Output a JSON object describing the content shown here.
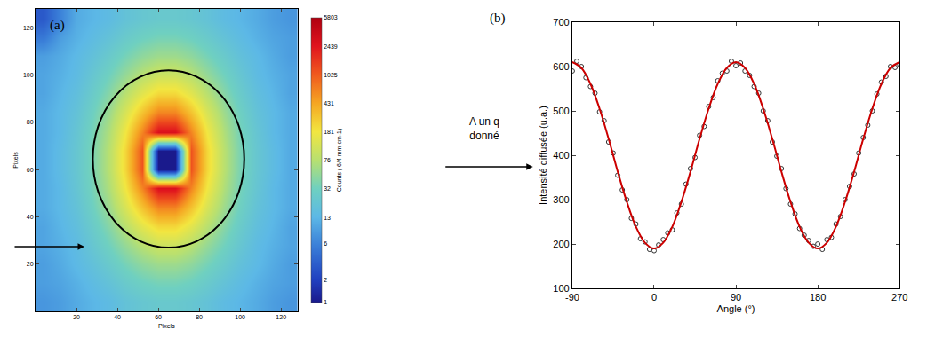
{
  "chart_data": [
    {
      "type": "heatmap",
      "panel": "(a)",
      "xlabel": "Pixels",
      "ylabel": "Pixels",
      "xlim": [
        0,
        128
      ],
      "ylim": [
        0,
        128
      ],
      "xticks": [
        20,
        40,
        60,
        80,
        100,
        120
      ],
      "yticks": [
        20,
        40,
        60,
        80,
        100,
        120
      ],
      "x": [
        4,
        12,
        20,
        28,
        36,
        44,
        52,
        60,
        68,
        76,
        84,
        92,
        100,
        108,
        116,
        124
      ],
      "y": [
        4,
        12,
        20,
        28,
        36,
        44,
        52,
        60,
        68,
        76,
        84,
        92,
        100,
        108,
        116,
        124
      ],
      "z": [
        [
          8,
          9,
          11,
          13,
          15,
          19,
          22,
          24,
          24,
          22,
          19,
          15,
          13,
          11,
          9,
          8
        ],
        [
          9,
          10,
          12,
          15,
          19,
          25,
          31,
          35,
          35,
          31,
          25,
          19,
          15,
          12,
          10,
          9
        ],
        [
          9,
          11,
          14,
          18,
          25,
          35,
          47,
          56,
          56,
          47,
          35,
          25,
          18,
          14,
          11,
          9
        ],
        [
          10,
          12,
          15,
          22,
          33,
          51,
          78,
          103,
          103,
          78,
          51,
          33,
          22,
          15,
          12,
          10
        ],
        [
          10,
          13,
          17,
          26,
          43,
          78,
          144,
          224,
          224,
          144,
          78,
          43,
          26,
          17,
          13,
          10
        ],
        [
          11,
          14,
          19,
          31,
          56,
          121,
          295,
          633,
          633,
          295,
          121,
          56,
          31,
          19,
          14,
          11
        ],
        [
          11,
          14,
          21,
          35,
          69,
          177,
          629,
          2761,
          2761,
          629,
          177,
          69,
          35,
          21,
          14,
          11
        ],
        [
          11,
          15,
          22,
          37,
          78,
          224,
          1121,
          1,
          1,
          1121,
          224,
          78,
          37,
          22,
          15,
          11
        ],
        [
          11,
          15,
          22,
          37,
          78,
          224,
          1121,
          1,
          1,
          1121,
          224,
          78,
          37,
          22,
          15,
          11
        ],
        [
          11,
          14,
          21,
          35,
          69,
          177,
          629,
          2761,
          2761,
          629,
          177,
          69,
          35,
          21,
          14,
          11
        ],
        [
          11,
          14,
          19,
          31,
          56,
          121,
          295,
          633,
          633,
          295,
          121,
          56,
          31,
          19,
          14,
          11
        ],
        [
          10,
          13,
          17,
          26,
          43,
          78,
          144,
          224,
          224,
          144,
          78,
          43,
          26,
          17,
          13,
          10
        ],
        [
          10,
          12,
          15,
          22,
          33,
          51,
          78,
          103,
          103,
          78,
          51,
          33,
          22,
          15,
          12,
          10
        ],
        [
          9,
          11,
          14,
          18,
          25,
          35,
          47,
          56,
          56,
          47,
          35,
          25,
          18,
          14,
          11,
          9
        ],
        [
          5,
          9,
          12,
          15,
          19,
          25,
          31,
          35,
          35,
          31,
          25,
          19,
          15,
          12,
          10,
          9
        ],
        [
          3,
          6,
          11,
          13,
          15,
          19,
          22,
          24,
          24,
          22,
          19,
          15,
          13,
          11,
          9,
          8
        ]
      ],
      "colorbar": {
        "title": "Counts ( 6/4 mm cm-1)",
        "range": [
          1,
          5803
        ],
        "ticks": [
          1,
          2,
          6,
          13,
          32,
          76,
          181,
          431,
          1025,
          2439,
          5803
        ],
        "log": true
      },
      "q_circle": {
        "x": [
          28,
          102
        ],
        "y": [
          27,
          102
        ]
      }
    },
    {
      "type": "scatter",
      "panel": "(b)",
      "xlabel": "Angle (°)",
      "ylabel": "Intensité diffusée (u.a.)",
      "xlim": [
        -90,
        270
      ],
      "ylim": [
        100,
        700
      ],
      "xticks": [
        -90,
        0,
        90,
        180,
        270
      ],
      "yticks": [
        100,
        200,
        300,
        400,
        500,
        600,
        700
      ],
      "grid": false,
      "series": [
        {
          "type": "scatter",
          "marker": "circle-open",
          "color": "#333333",
          "x": [
            -90,
            -85,
            -80,
            -75,
            -70,
            -65,
            -60,
            -55,
            -50,
            -45,
            -40,
            -35,
            -30,
            -25,
            -20,
            -15,
            -10,
            -5,
            0,
            5,
            10,
            15,
            20,
            25,
            30,
            35,
            40,
            45,
            50,
            55,
            60,
            65,
            70,
            75,
            80,
            85,
            90,
            95,
            100,
            105,
            110,
            115,
            120,
            125,
            130,
            135,
            140,
            145,
            150,
            155,
            160,
            165,
            170,
            175,
            180,
            185,
            190,
            195,
            200,
            205,
            210,
            215,
            220,
            225,
            230,
            235,
            240,
            245,
            250,
            255,
            260,
            265,
            270
          ],
          "values": [
            590,
            612,
            600,
            575,
            555,
            540,
            498,
            478,
            430,
            405,
            355,
            322,
            300,
            258,
            245,
            212,
            205,
            188,
            185,
            198,
            210,
            225,
            232,
            270,
            290,
            335,
            370,
            395,
            445,
            465,
            510,
            530,
            568,
            585,
            590,
            612,
            602,
            608,
            590,
            580,
            555,
            540,
            500,
            478,
            430,
            398,
            370,
            325,
            290,
            268,
            235,
            220,
            208,
            195,
            200,
            188,
            210,
            215,
            245,
            262,
            300,
            330,
            358,
            405,
            440,
            468,
            500,
            538,
            565,
            578,
            600,
            598,
            605
          ]
        },
        {
          "type": "line",
          "line_style": "solid",
          "color": "#cc0000",
          "x": [
            -90,
            -80,
            -70,
            -60,
            -50,
            -40,
            -30,
            -20,
            -10,
            0,
            10,
            20,
            30,
            40,
            50,
            60,
            70,
            80,
            90,
            100,
            110,
            120,
            130,
            140,
            150,
            160,
            170,
            180,
            190,
            200,
            210,
            220,
            230,
            240,
            250,
            260,
            270
          ],
          "values": [
            610,
            597,
            561,
            505,
            437,
            363,
            295,
            239,
            203,
            190,
            203,
            239,
            295,
            363,
            437,
            505,
            561,
            597,
            610,
            597,
            561,
            505,
            437,
            363,
            295,
            239,
            203,
            190,
            203,
            239,
            295,
            363,
            437,
            505,
            561,
            597,
            610
          ]
        }
      ]
    }
  ],
  "arrow_label": [
    "A un q",
    "donné"
  ]
}
